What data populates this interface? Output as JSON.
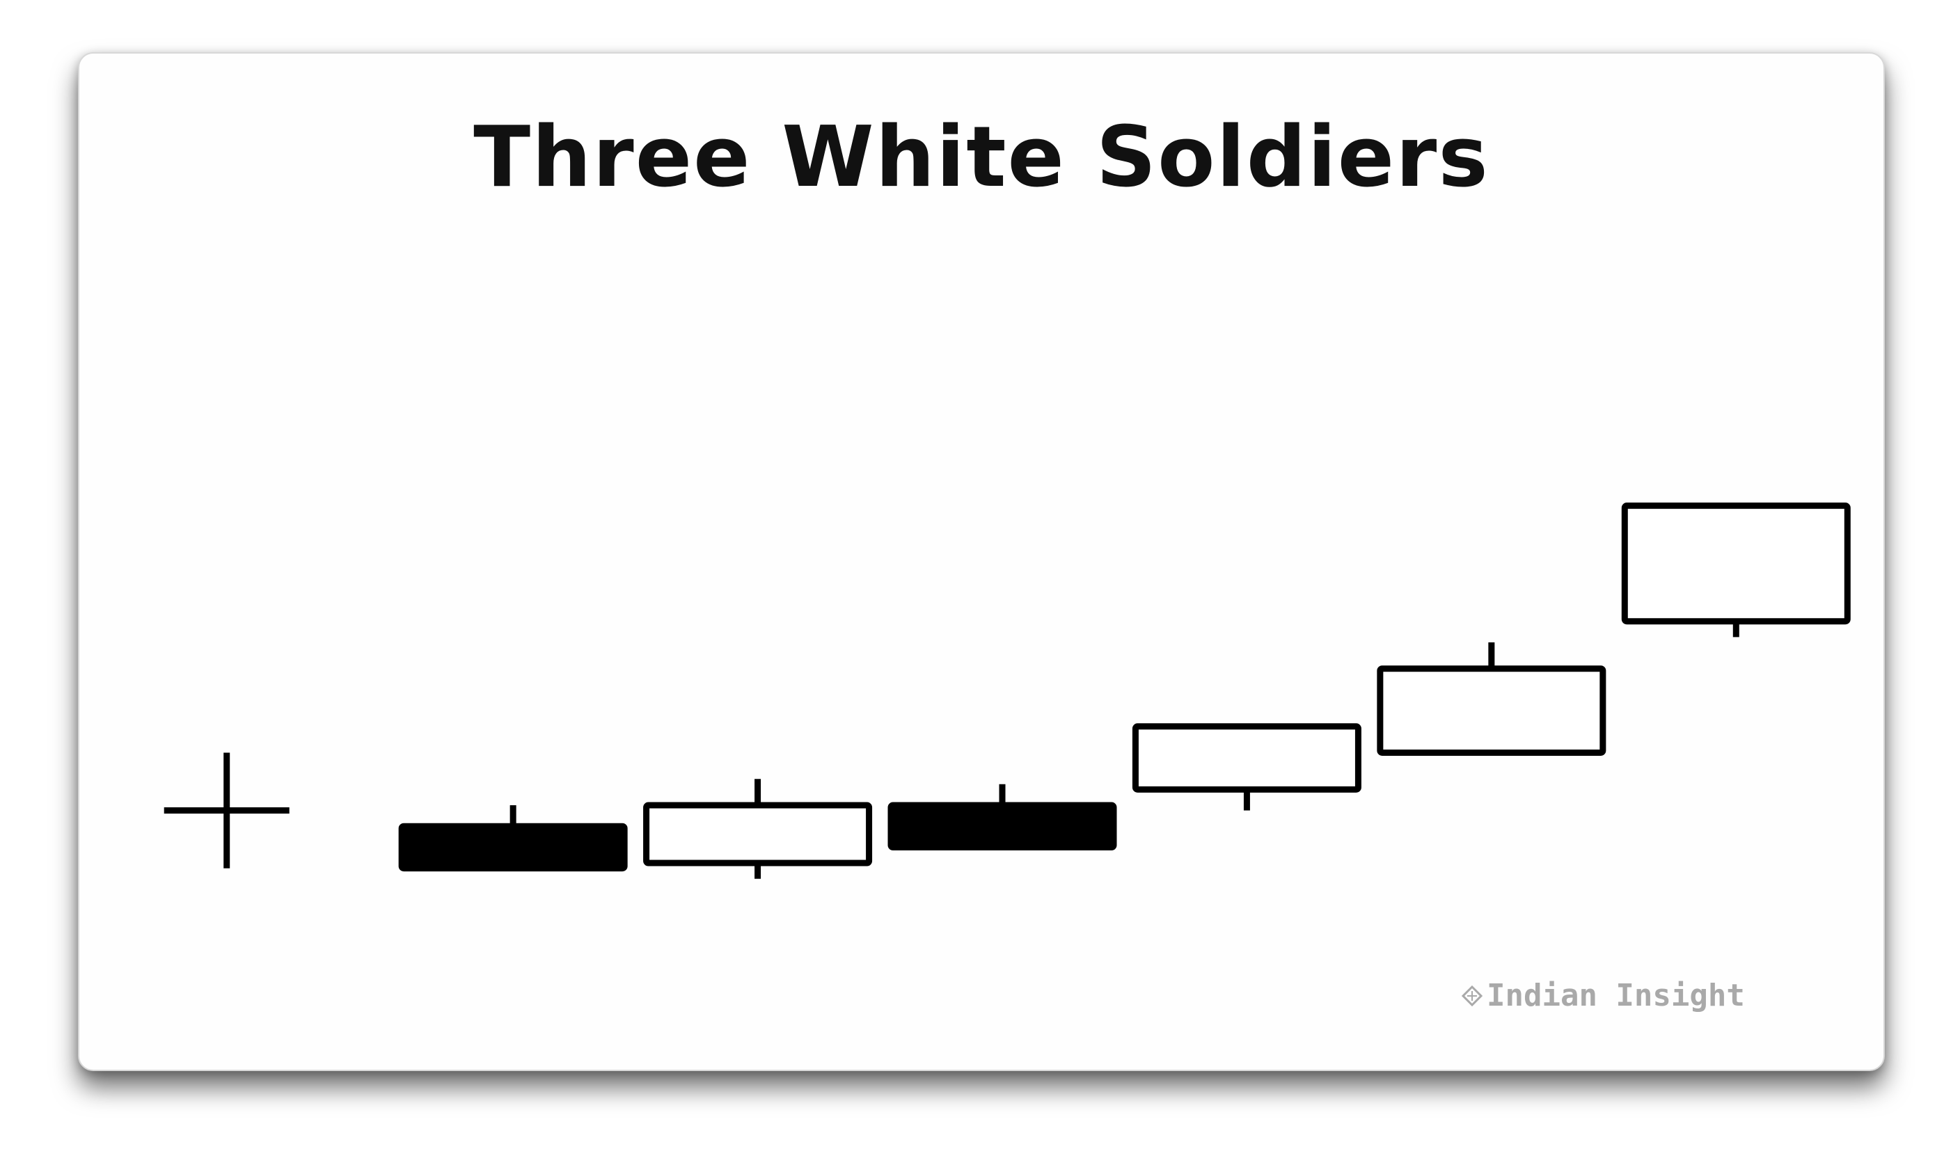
{
  "chart_data": {
    "type": "candlestick",
    "title": "Three White Soldiers",
    "xlabel": "",
    "ylabel": "",
    "grid": false,
    "legend": "none",
    "ylim": [
      0,
      20
    ],
    "candles": [
      {
        "kind": "doji",
        "open": 5.9,
        "close": 5.9,
        "high": 7.0,
        "low": 4.8
      },
      {
        "kind": "bearish",
        "open": 5.6,
        "close": 4.8,
        "high": 6.0,
        "low": 4.8
      },
      {
        "kind": "bullish",
        "open": 4.9,
        "close": 6.0,
        "high": 6.5,
        "low": 4.6
      },
      {
        "kind": "bearish",
        "open": 6.0,
        "close": 5.2,
        "high": 6.4,
        "low": 5.2
      },
      {
        "kind": "bullish",
        "open": 6.3,
        "close": 7.5,
        "high": 7.5,
        "low": 5.9
      },
      {
        "kind": "bullish",
        "open": 7.0,
        "close": 8.6,
        "high": 9.1,
        "low": 7.0
      },
      {
        "kind": "bullish",
        "open": 9.5,
        "close": 11.7,
        "high": 11.7,
        "low": 9.2
      }
    ],
    "colors": {
      "bearish_fill": "#000000",
      "bullish_fill": "#ffffff",
      "outline": "#000000"
    }
  },
  "watermark": {
    "text": "Indian Insight",
    "icon": "diamond-logo-icon",
    "color": "#a9a9a9"
  },
  "colors": {
    "background": "#fefefe",
    "title": "#111111"
  }
}
